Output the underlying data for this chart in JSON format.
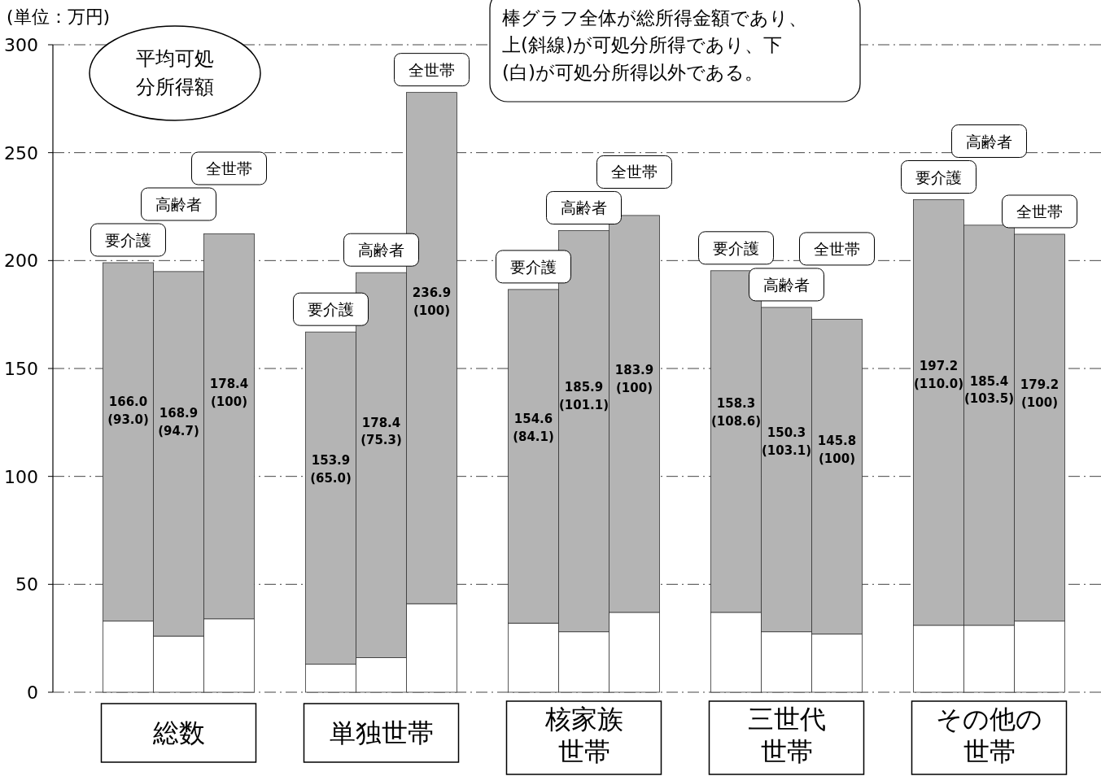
{
  "chart_data": {
    "type": "bar",
    "stacked": true,
    "categories": [
      "要介護",
      "高齢者",
      "全世帯",
      "要介護",
      "高齢者",
      "全世帯",
      "要介護",
      "高齢者",
      "全世帯",
      "要介護",
      "高齢者",
      "全世帯",
      "要介護",
      "高齢者",
      "全世帯"
    ],
    "series": [
      {
        "color": "#ffffff",
        "values": [
          33,
          26,
          34,
          13,
          16,
          41,
          32,
          28,
          37,
          37,
          28,
          27,
          31,
          31,
          33
        ]
      },
      {
        "color": "#b4b4b4",
        "values": [
          166.0,
          168.9,
          178.4,
          153.9,
          178.4,
          236.9,
          154.6,
          185.9,
          183.9,
          158.3,
          150.3,
          145.8,
          197.2,
          185.4,
          179.2
        ],
        "value_labels": [
          "166.0 (93.0)",
          "168.9 (94.7)",
          "178.4 (100)",
          "153.9 (65.0)",
          "178.4 (75.3)",
          "236.9 (100)",
          "154.6 (84.1)",
          "185.9 (101.1)",
          "183.9 (100)",
          "158.3 (108.6)",
          "150.3 (103.1)",
          "145.8 (100)",
          "197.2 (110.0)",
          "185.4 (103.5)",
          "179.2 (100)"
        ]
      }
    ],
    "ylim": [
      0,
      300
    ],
    "yticks": [
      0,
      50,
      100,
      150,
      200,
      250,
      300
    ],
    "grid": "y",
    "annotations": [
      "(単位：万円)",
      "棒グラフ全体が総所得金額であり、上(斜線)が可処分所得であり、下(白)が可処分所得以外である。",
      "平均可処分所得額",
      "総数",
      "単独世帯",
      "核家族世帯",
      "三世代世帯",
      "その他の世帯"
    ]
  }
}
